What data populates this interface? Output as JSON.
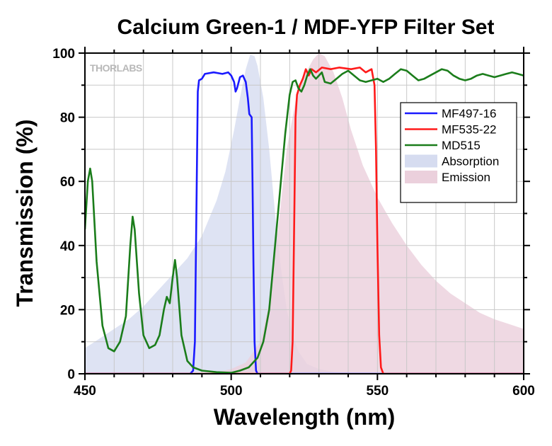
{
  "chart_data": {
    "type": "line",
    "title": "Calcium Green-1 / MDF-YFP Filter Set",
    "xlabel": "Wavelength (nm)",
    "ylabel": "Transmission (%)",
    "xlim": [
      450,
      600
    ],
    "ylim": [
      0,
      100
    ],
    "x_ticks": [
      450,
      500,
      550,
      600
    ],
    "y_ticks": [
      0,
      20,
      40,
      60,
      80,
      100
    ],
    "grid": true,
    "legend_position": "right",
    "logo": "THORLABS",
    "series": [
      {
        "name": "MF497-16",
        "kind": "line",
        "color": "#1a1aff",
        "points": [
          [
            450,
            0
          ],
          [
            486,
            0
          ],
          [
            487,
            1
          ],
          [
            487.6,
            10
          ],
          [
            488.1,
            50
          ],
          [
            488.6,
            88
          ],
          [
            489,
            91.5
          ],
          [
            490,
            92
          ],
          [
            491,
            93.5
          ],
          [
            494,
            94
          ],
          [
            497,
            93.5
          ],
          [
            499,
            94
          ],
          [
            500,
            93
          ],
          [
            501,
            91
          ],
          [
            501.5,
            88
          ],
          [
            502,
            89
          ],
          [
            503,
            92.5
          ],
          [
            504,
            93
          ],
          [
            505,
            91
          ],
          [
            505.7,
            86
          ],
          [
            506.2,
            81
          ],
          [
            507,
            80
          ],
          [
            507.3,
            60
          ],
          [
            507.6,
            35
          ],
          [
            508,
            10
          ],
          [
            508.5,
            1
          ],
          [
            509,
            0
          ],
          [
            600,
            0
          ]
        ]
      },
      {
        "name": "MF535-22",
        "kind": "line",
        "color": "#ff1a1a",
        "points": [
          [
            450,
            0
          ],
          [
            520,
            0
          ],
          [
            520.5,
            1
          ],
          [
            521,
            10
          ],
          [
            521.6,
            50
          ],
          [
            522,
            80
          ],
          [
            522.5,
            87
          ],
          [
            523.5,
            90
          ],
          [
            524.5,
            92
          ],
          [
            525.5,
            95
          ],
          [
            526.5,
            93
          ],
          [
            527.5,
            95
          ],
          [
            529,
            94
          ],
          [
            531,
            95.5
          ],
          [
            534,
            95
          ],
          [
            537,
            95.5
          ],
          [
            541,
            95
          ],
          [
            544,
            95.5
          ],
          [
            546,
            94
          ],
          [
            548,
            95
          ],
          [
            549,
            90
          ],
          [
            549.5,
            70
          ],
          [
            550,
            40
          ],
          [
            550.6,
            12
          ],
          [
            551.2,
            2
          ],
          [
            552,
            0
          ],
          [
            600,
            0
          ]
        ]
      },
      {
        "name": "MD515",
        "kind": "line",
        "color": "#1b7d1b",
        "points": [
          [
            450,
            45
          ],
          [
            451,
            60
          ],
          [
            451.8,
            64
          ],
          [
            452.5,
            60
          ],
          [
            454,
            35
          ],
          [
            456,
            15
          ],
          [
            458,
            8
          ],
          [
            460,
            7
          ],
          [
            462,
            10
          ],
          [
            464,
            18
          ],
          [
            465.5,
            40
          ],
          [
            466.3,
            49
          ],
          [
            467,
            45
          ],
          [
            468.5,
            25
          ],
          [
            470,
            12
          ],
          [
            472,
            8
          ],
          [
            474,
            9
          ],
          [
            475.5,
            12
          ],
          [
            477,
            20
          ],
          [
            478,
            24
          ],
          [
            479,
            22
          ],
          [
            480,
            30
          ],
          [
            480.8,
            35.5
          ],
          [
            481.5,
            30
          ],
          [
            483,
            12
          ],
          [
            485,
            4
          ],
          [
            487,
            2
          ],
          [
            490,
            1
          ],
          [
            495,
            0.5
          ],
          [
            500,
            0.3
          ],
          [
            503,
            1
          ],
          [
            506,
            2
          ],
          [
            509,
            5
          ],
          [
            511,
            10
          ],
          [
            513,
            20
          ],
          [
            515,
            40
          ],
          [
            517,
            60
          ],
          [
            518.5,
            75
          ],
          [
            520,
            87
          ],
          [
            521,
            91
          ],
          [
            522,
            91.5
          ],
          [
            523,
            89
          ],
          [
            524,
            88
          ],
          [
            525,
            90
          ],
          [
            526,
            93
          ],
          [
            527,
            95
          ],
          [
            528,
            93
          ],
          [
            529,
            92
          ],
          [
            530,
            93
          ],
          [
            531,
            94
          ],
          [
            532,
            91
          ],
          [
            534,
            90.5
          ],
          [
            536,
            92
          ],
          [
            538,
            93.5
          ],
          [
            540,
            94.5
          ],
          [
            542,
            93
          ],
          [
            544,
            91.5
          ],
          [
            546,
            91
          ],
          [
            548,
            91.5
          ],
          [
            550,
            92
          ],
          [
            552,
            91
          ],
          [
            554,
            92
          ],
          [
            556,
            93.5
          ],
          [
            558,
            95
          ],
          [
            560,
            94.5
          ],
          [
            562,
            93
          ],
          [
            564,
            91.5
          ],
          [
            566,
            92
          ],
          [
            568,
            93
          ],
          [
            570,
            94
          ],
          [
            572,
            95
          ],
          [
            574,
            94.5
          ],
          [
            576,
            93
          ],
          [
            578,
            92
          ],
          [
            580,
            91.5
          ],
          [
            582,
            92
          ],
          [
            584,
            93
          ],
          [
            586,
            93.5
          ],
          [
            588,
            93
          ],
          [
            590,
            92.5
          ],
          [
            592,
            93
          ],
          [
            594,
            93.5
          ],
          [
            596,
            94
          ],
          [
            598,
            93.5
          ],
          [
            600,
            93
          ]
        ]
      },
      {
        "name": "Absorption",
        "kind": "area",
        "color": "#d6dcf0",
        "points": [
          [
            450,
            8
          ],
          [
            455,
            11
          ],
          [
            460,
            14
          ],
          [
            465,
            17
          ],
          [
            470,
            21
          ],
          [
            475,
            26
          ],
          [
            480,
            31
          ],
          [
            485,
            36
          ],
          [
            490,
            43
          ],
          [
            495,
            54
          ],
          [
            498,
            63
          ],
          [
            501,
            76
          ],
          [
            503,
            86
          ],
          [
            505,
            95
          ],
          [
            506.5,
            99.5
          ],
          [
            508,
            99
          ],
          [
            509,
            96
          ],
          [
            511,
            86
          ],
          [
            513,
            70
          ],
          [
            515,
            50
          ],
          [
            517,
            33
          ],
          [
            519,
            20
          ],
          [
            521,
            12
          ],
          [
            523,
            7
          ],
          [
            526,
            3
          ],
          [
            530,
            1.5
          ],
          [
            535,
            0.6
          ],
          [
            540,
            0.2
          ],
          [
            545,
            0
          ],
          [
            600,
            0
          ]
        ]
      },
      {
        "name": "Emission",
        "kind": "area",
        "color": "#ebd0dc",
        "points": [
          [
            450,
            0
          ],
          [
            490,
            0
          ],
          [
            495,
            0.5
          ],
          [
            500,
            1.5
          ],
          [
            505,
            3.5
          ],
          [
            510,
            10
          ],
          [
            513,
            22
          ],
          [
            516,
            45
          ],
          [
            519,
            70
          ],
          [
            522,
            85
          ],
          [
            525,
            93
          ],
          [
            528,
            98
          ],
          [
            530,
            100
          ],
          [
            532,
            99
          ],
          [
            535,
            94
          ],
          [
            538,
            86
          ],
          [
            541,
            76
          ],
          [
            545,
            65
          ],
          [
            550,
            55
          ],
          [
            555,
            47
          ],
          [
            560,
            40
          ],
          [
            565,
            34
          ],
          [
            570,
            29
          ],
          [
            575,
            25
          ],
          [
            580,
            22
          ],
          [
            585,
            19
          ],
          [
            590,
            17
          ],
          [
            595,
            15.5
          ],
          [
            600,
            14
          ]
        ]
      }
    ]
  }
}
